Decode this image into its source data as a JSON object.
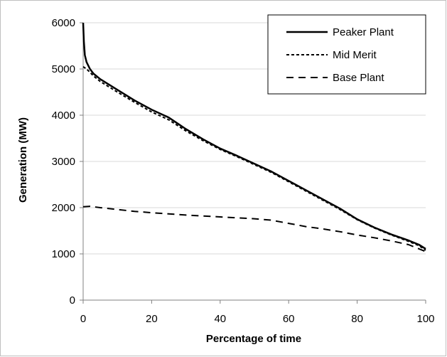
{
  "chart_data": {
    "type": "line",
    "title": "",
    "xlabel": "Percentage of time",
    "ylabel": "Generation (MW)",
    "xlim": [
      0,
      100
    ],
    "ylim": [
      0,
      6000
    ],
    "x_ticks": [
      0,
      20,
      40,
      60,
      80,
      100
    ],
    "y_ticks": [
      0,
      1000,
      2000,
      3000,
      4000,
      5000,
      6000
    ],
    "x_tick_labels": [
      "0",
      "20",
      "40",
      "60",
      "80",
      "100"
    ],
    "y_tick_labels": [
      "0",
      "1000",
      "2000",
      "3000",
      "4000",
      "5000",
      "6000"
    ],
    "grid": "horizontal",
    "legend_position": "top-right",
    "series": [
      {
        "name": "Peaker Plant",
        "style": "solid",
        "color": "#000000",
        "x": [
          0,
          0.2,
          0.5,
          1,
          2,
          3,
          5,
          10,
          15,
          20,
          25,
          30,
          35,
          40,
          45,
          50,
          55,
          60,
          65,
          70,
          75,
          80,
          85,
          90,
          95,
          98,
          100
        ],
        "y": [
          6000,
          5600,
          5300,
          5150,
          5000,
          4900,
          4780,
          4550,
          4320,
          4120,
          3950,
          3700,
          3480,
          3280,
          3120,
          2950,
          2780,
          2580,
          2380,
          2180,
          1980,
          1750,
          1570,
          1420,
          1290,
          1200,
          1110
        ]
      },
      {
        "name": "Mid Merit",
        "style": "dotted",
        "color": "#000000",
        "x": [
          0,
          1,
          2,
          3,
          5,
          10,
          15,
          20,
          25,
          30,
          35,
          40,
          45,
          50,
          55,
          60,
          65,
          70,
          75,
          80,
          85,
          90,
          95,
          98,
          100
        ],
        "y": [
          5050,
          5000,
          4930,
          4850,
          4730,
          4500,
          4280,
          4070,
          3900,
          3660,
          3450,
          3260,
          3100,
          2930,
          2760,
          2560,
          2360,
          2160,
          1960,
          1740,
          1560,
          1410,
          1270,
          1180,
          1080
        ]
      },
      {
        "name": "Base Plant",
        "style": "dashed",
        "color": "#000000",
        "x": [
          0,
          2,
          5,
          10,
          15,
          20,
          30,
          40,
          50,
          55,
          60,
          65,
          70,
          75,
          80,
          85,
          90,
          95,
          100
        ],
        "y": [
          2020,
          2030,
          2000,
          1960,
          1920,
          1890,
          1840,
          1800,
          1760,
          1730,
          1660,
          1590,
          1540,
          1480,
          1410,
          1350,
          1280,
          1200,
          1050
        ]
      }
    ]
  }
}
